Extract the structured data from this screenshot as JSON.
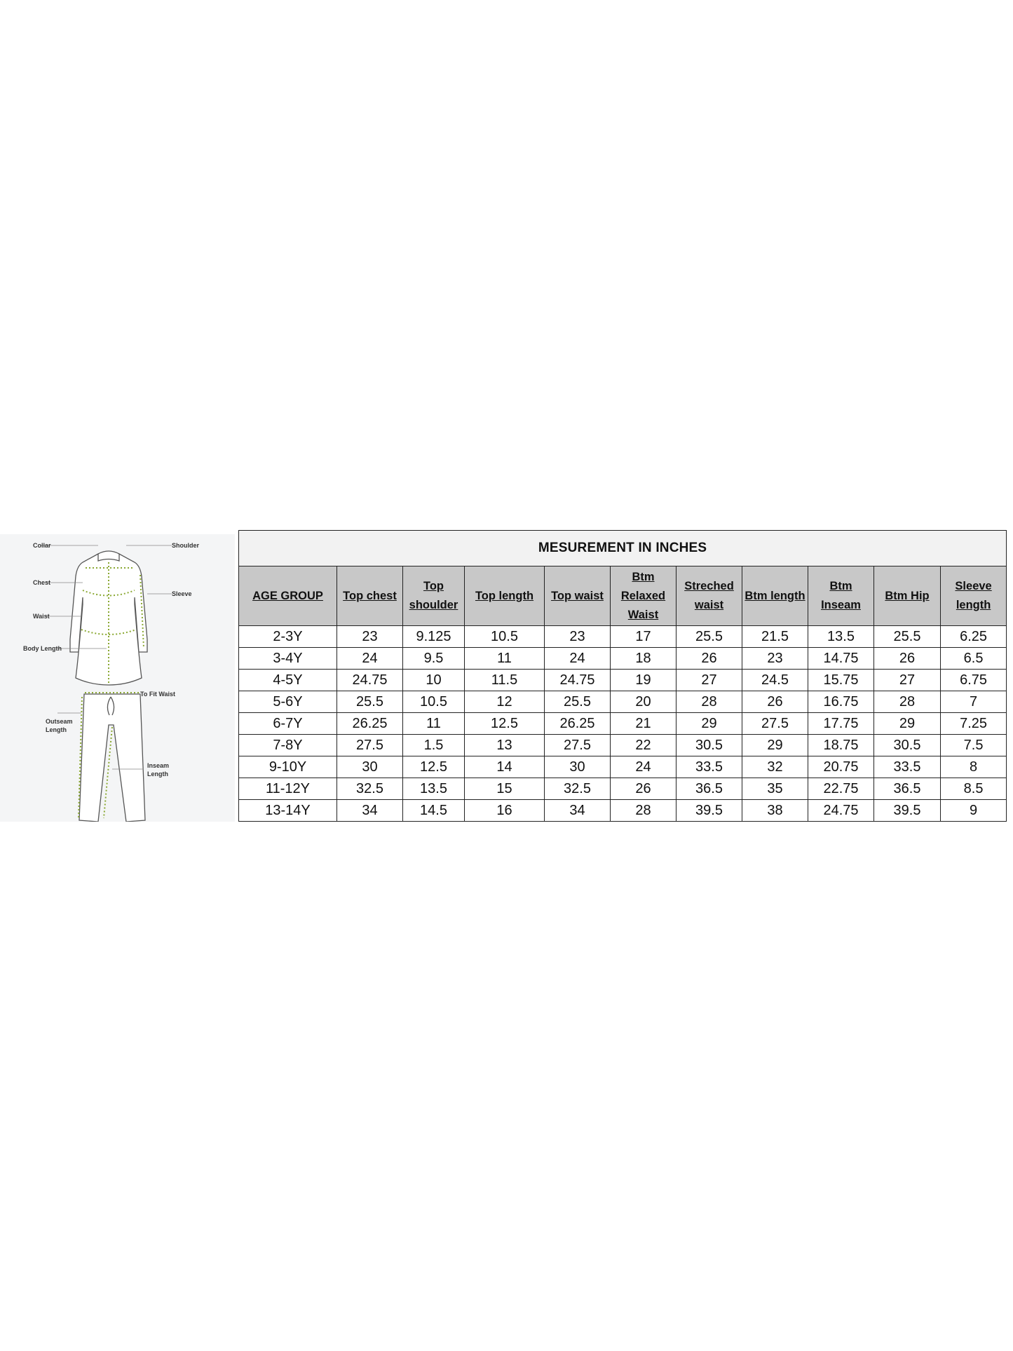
{
  "diagram": {
    "labels": {
      "collar": "Collar",
      "shoulder": "Shoulder",
      "chest": "Chest",
      "sleeve": "Sleeve",
      "waist": "Waist",
      "body_length": "Body Length",
      "to_fit_waist": "To Fit Waist",
      "outseam_1": "Outseam",
      "outseam_2": "Length",
      "inseam_1": "Inseam",
      "inseam_2": "Length"
    },
    "accent_color": "#8aa832"
  },
  "table": {
    "title": "MESUREMENT  IN  INCHES",
    "headers": [
      "AGE GROUP",
      "Top chest",
      "Top shoulder",
      "Top length",
      "Top waist",
      "Btm Relaxed Waist",
      "Streched waist",
      "Btm length",
      "Btm Inseam",
      "Btm Hip",
      "Sleeve length"
    ],
    "rows": [
      [
        "2-3Y",
        "23",
        "9.125",
        "10.5",
        "23",
        "17",
        "25.5",
        "21.5",
        "13.5",
        "25.5",
        "6.25"
      ],
      [
        "3-4Y",
        "24",
        "9.5",
        "11",
        "24",
        "18",
        "26",
        "23",
        "14.75",
        "26",
        "6.5"
      ],
      [
        "4-5Y",
        "24.75",
        "10",
        "11.5",
        "24.75",
        "19",
        "27",
        "24.5",
        "15.75",
        "27",
        "6.75"
      ],
      [
        "5-6Y",
        "25.5",
        "10.5",
        "12",
        "25.5",
        "20",
        "28",
        "26",
        "16.75",
        "28",
        "7"
      ],
      [
        "6-7Y",
        "26.25",
        "11",
        "12.5",
        "26.25",
        "21",
        "29",
        "27.5",
        "17.75",
        "29",
        "7.25"
      ],
      [
        "7-8Y",
        "27.5",
        "1.5",
        "13",
        "27.5",
        "22",
        "30.5",
        "29",
        "18.75",
        "30.5",
        "7.5"
      ],
      [
        "9-10Y",
        "30",
        "12.5",
        "14",
        "30",
        "24",
        "33.5",
        "32",
        "20.75",
        "33.5",
        "8"
      ],
      [
        "11-12Y",
        "32.5",
        "13.5",
        "15",
        "32.5",
        "26",
        "36.5",
        "35",
        "22.75",
        "36.5",
        "8.5"
      ],
      [
        "13-14Y",
        "34",
        "14.5",
        "16",
        "34",
        "28",
        "39.5",
        "38",
        "24.75",
        "39.5",
        "9"
      ]
    ]
  }
}
